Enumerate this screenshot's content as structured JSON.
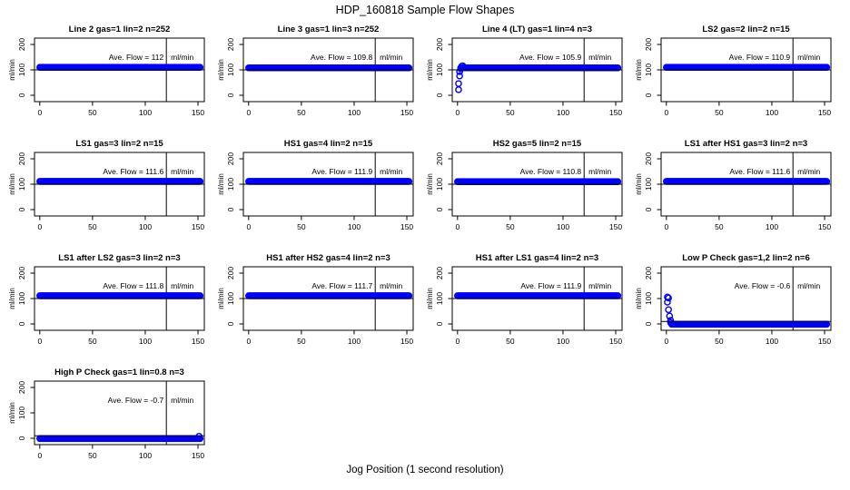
{
  "page": {
    "main_title": "HDP_160818  Sample Flow Shapes",
    "x_axis_label": "Jog Position (1 second resolution)"
  },
  "style": {
    "point_color": "#0000ff",
    "axis_color": "#000000",
    "background": "#ffffff"
  },
  "chart_data": {
    "type": "scatter",
    "grid": [
      4,
      4
    ],
    "xlim": [
      -5,
      156
    ],
    "ylim": [
      -25,
      225
    ],
    "x_ticks": [
      0,
      50,
      100,
      150
    ],
    "y_ticks": [
      0,
      100,
      200
    ],
    "y_axis_label": "ml/min",
    "unit_label": "ml/min",
    "ave_flow_prefix": "Ave. Flow = ",
    "vline_x": 120,
    "panels": [
      {
        "title": "Line 2 gas=1 lin=2 n=252",
        "ave_flow": " 112",
        "band_y": 110,
        "band_start": 0,
        "band_end": 152,
        "refline_y": 100,
        "extra_points": []
      },
      {
        "title": "Line 3 gas=1 lin=3 n=252",
        "ave_flow": " 109.8",
        "band_y": 108,
        "band_start": 0,
        "band_end": 152,
        "refline_y": 100,
        "extra_points": []
      },
      {
        "title": "Line 4 (LT) gas=1 lin=4 n=3",
        "ave_flow": " 105.9",
        "band_y": 108,
        "band_start": 3,
        "band_end": 152,
        "refline_y": 100,
        "extra_points": [
          [
            1,
            22
          ],
          [
            1,
            46
          ],
          [
            2,
            76
          ],
          [
            2,
            93
          ],
          [
            3,
            104
          ],
          [
            4,
            114
          ],
          [
            5,
            116
          ]
        ]
      },
      {
        "title": "LS2 gas=2 lin=2 n=15",
        "ave_flow": " 110.9",
        "band_y": 110,
        "band_start": 0,
        "band_end": 152,
        "refline_y": 100,
        "extra_points": []
      },
      {
        "title": "LS1 gas=3 lin=2 n=15",
        "ave_flow": " 111.6",
        "band_y": 111,
        "band_start": 0,
        "band_end": 152,
        "refline_y": 100,
        "extra_points": []
      },
      {
        "title": "HS1 gas=4 lin=2 n=15",
        "ave_flow": " 111.9",
        "band_y": 111,
        "band_start": 0,
        "band_end": 152,
        "refline_y": 100,
        "extra_points": []
      },
      {
        "title": "HS2 gas=5 lin=2 n=15",
        "ave_flow": " 110.8",
        "band_y": 110,
        "band_start": 0,
        "band_end": 152,
        "refline_y": 100,
        "extra_points": []
      },
      {
        "title": "LS1 after HS1 gas=3 lin=2 n=3",
        "ave_flow": " 111.6",
        "band_y": 111,
        "band_start": 0,
        "band_end": 152,
        "refline_y": 100,
        "extra_points": []
      },
      {
        "title": "LS1 after LS2 gas=3 lin=2 n=3",
        "ave_flow": " 111.8",
        "band_y": 111,
        "band_start": 0,
        "band_end": 152,
        "refline_y": 100,
        "extra_points": []
      },
      {
        "title": "HS1 after HS2 gas=4 lin=2 n=3",
        "ave_flow": " 111.7",
        "band_y": 111,
        "band_start": 0,
        "band_end": 152,
        "refline_y": 100,
        "extra_points": []
      },
      {
        "title": "HS1 after LS1 gas=4 lin=2 n=3",
        "ave_flow": " 111.9",
        "band_y": 111,
        "band_start": 0,
        "band_end": 152,
        "refline_y": 100,
        "extra_points": []
      },
      {
        "title": "Low P Check gas=1,2 lin=2 n=6",
        "ave_flow": " -0.6",
        "band_y": -1,
        "band_start": 5,
        "band_end": 152,
        "refline_y": 10,
        "extra_points": [
          [
            1,
            106
          ],
          [
            2,
            102
          ],
          [
            1,
            86
          ],
          [
            2,
            56
          ],
          [
            3,
            31
          ],
          [
            4,
            14
          ],
          [
            4,
            5
          ]
        ]
      },
      {
        "title": "High P Check gas=1 lin=0.8 n=3",
        "ave_flow": " -0.7",
        "band_y": -1,
        "band_start": 0,
        "band_end": 152,
        "refline_y": 10,
        "extra_points": [
          [
            151,
            8
          ]
        ]
      }
    ]
  }
}
